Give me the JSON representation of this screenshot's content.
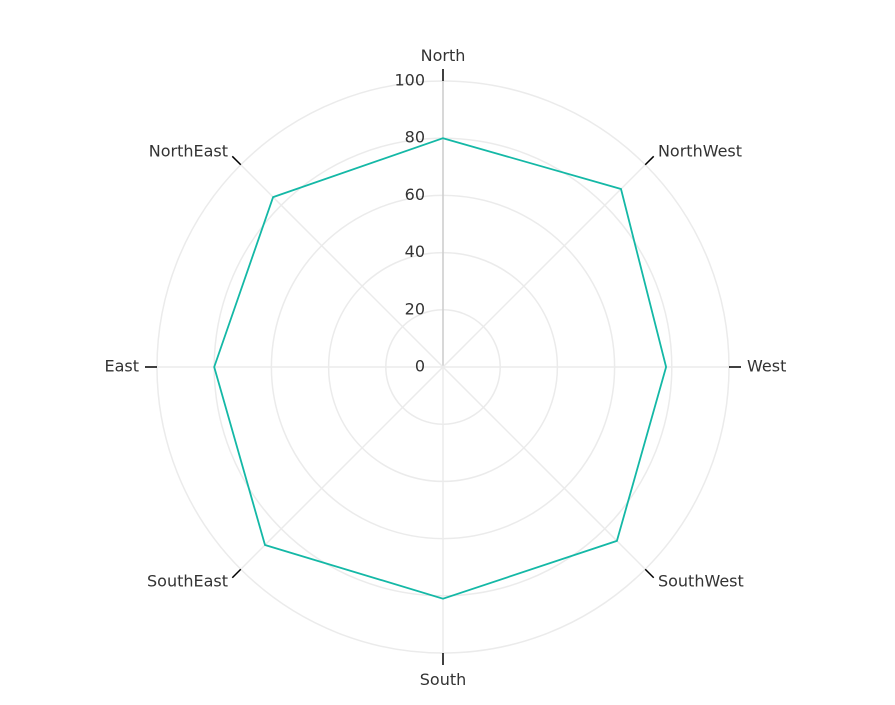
{
  "chart_data": {
    "type": "radar",
    "categories": [
      "North",
      "NorthWest",
      "West",
      "SouthWest",
      "South",
      "SouthEast",
      "East",
      "NorthEast"
    ],
    "series": [
      {
        "values": [
          80,
          88,
          78,
          86,
          81,
          88,
          80,
          84
        ],
        "color": "#14B8A6"
      }
    ],
    "rlim": [
      0,
      100
    ],
    "radial_ticks": [
      0,
      20,
      40,
      60,
      80,
      100
    ],
    "grid": true,
    "legend": "none",
    "grid_color": "#EBEBEB",
    "axis_color": "#CCCCCC",
    "tick_mark_color": "#000000"
  }
}
